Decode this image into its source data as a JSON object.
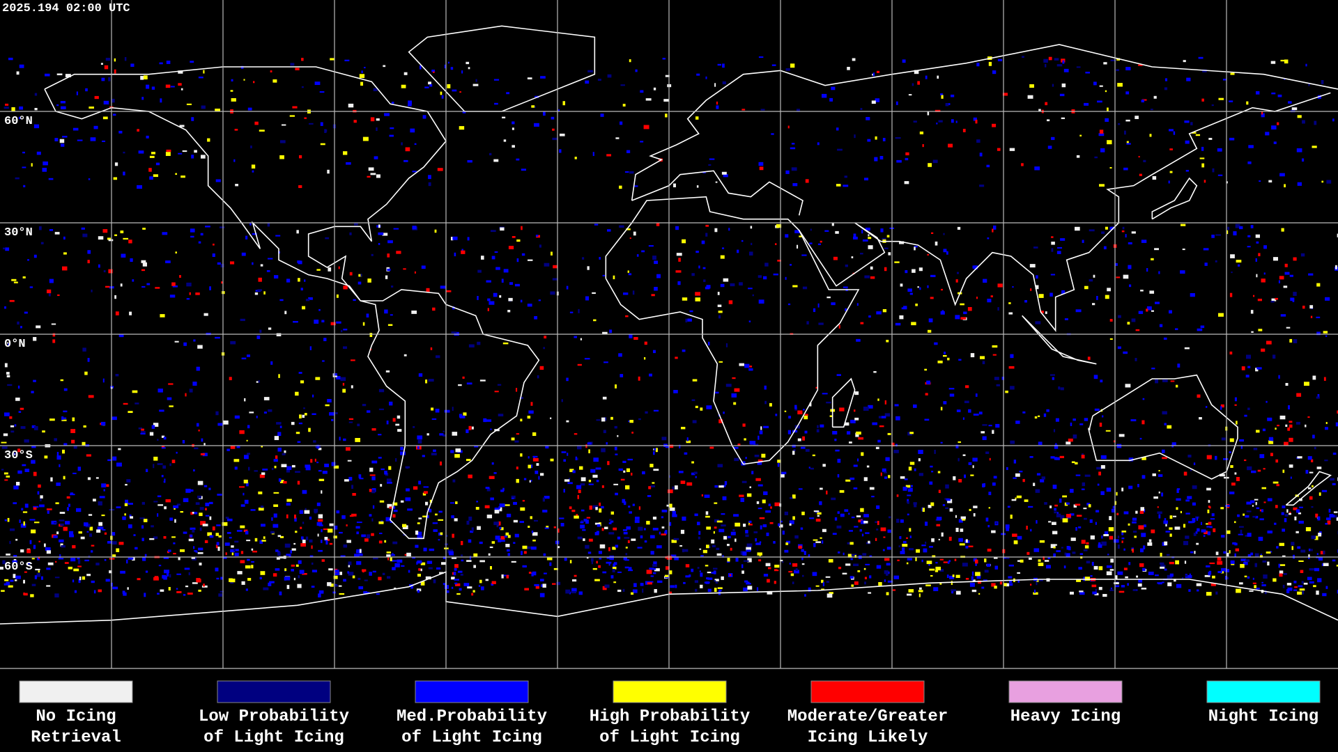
{
  "header": {
    "title": "2025.194 02:00 UTC"
  },
  "latitude_labels": [
    "60°N",
    "30°N",
    "0°N",
    "30°S",
    "60°S"
  ],
  "legend": [
    {
      "label_lines": [
        "No Icing",
        "Retrieval"
      ],
      "color": "#f0f0f0"
    },
    {
      "label_lines": [
        "Low Probability",
        "of Light Icing"
      ],
      "color": "#000080"
    },
    {
      "label_lines": [
        "Med.Probability",
        "of Light Icing"
      ],
      "color": "#0000ff"
    },
    {
      "label_lines": [
        "High Probability",
        "of Light Icing"
      ],
      "color": "#ffff00"
    },
    {
      "label_lines": [
        "Moderate/Greater",
        "Icing Likely"
      ],
      "color": "#ff0000"
    },
    {
      "label_lines": [
        "Heavy Icing"
      ],
      "color": "#e8a0e0"
    },
    {
      "label_lines": [
        "Night Icing"
      ],
      "color": "#00ffff"
    }
  ]
}
